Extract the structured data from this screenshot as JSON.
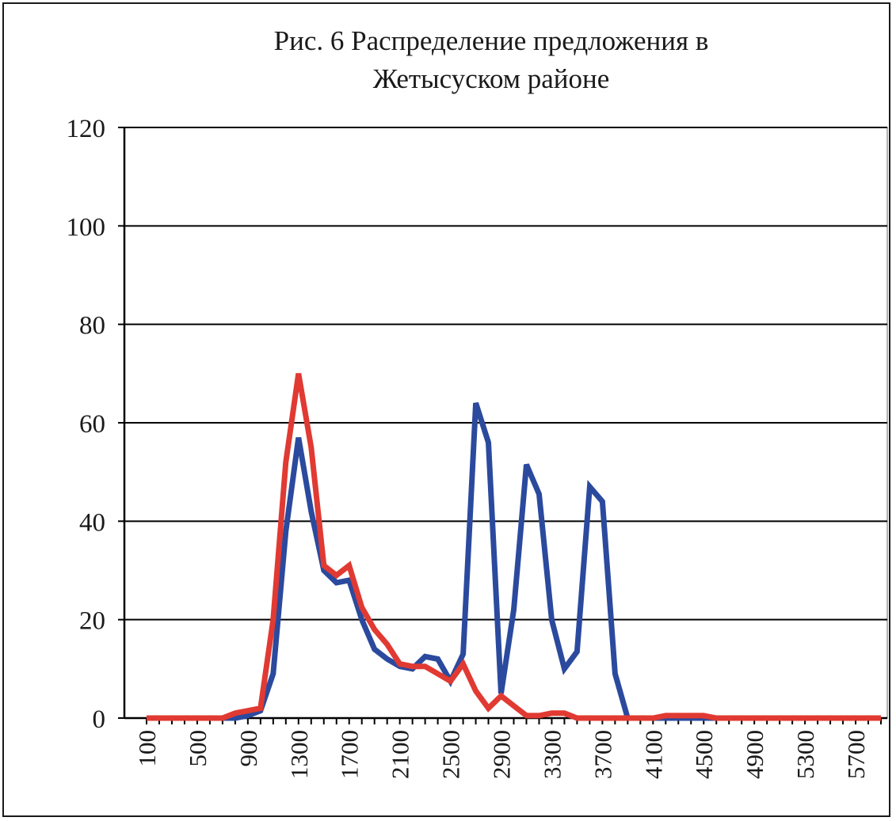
{
  "chart_data": {
    "type": "line",
    "title_line1": "Рис.  6 Распределение предложения в",
    "title_line2": "Жетысуском районе",
    "xlabel": "",
    "ylabel": "",
    "ylim": [
      0,
      120
    ],
    "yticks": [
      "0",
      "20",
      "40",
      "60",
      "80",
      "100",
      "120"
    ],
    "x": [
      100,
      200,
      300,
      400,
      500,
      600,
      700,
      800,
      900,
      1000,
      1100,
      1200,
      1300,
      1400,
      1500,
      1600,
      1700,
      1800,
      1900,
      2000,
      2100,
      2200,
      2300,
      2400,
      2500,
      2600,
      2700,
      2800,
      2900,
      3000,
      3100,
      3200,
      3300,
      3400,
      3500,
      3600,
      3700,
      3800,
      3900,
      4000,
      4100,
      4200,
      4300,
      4400,
      4500,
      4600,
      4700,
      4800,
      4900,
      5000,
      5100,
      5200,
      5300,
      5400,
      5500,
      5600,
      5700,
      5800,
      5900
    ],
    "xticks": [
      "100",
      "500",
      "900",
      "1300",
      "1700",
      "2100",
      "2500",
      "2900",
      "3300",
      "3700",
      "4100",
      "4500",
      "4900",
      "5300",
      "5700"
    ],
    "grid": true,
    "legend": "none",
    "series": [
      {
        "color": "#2b4a9e",
        "values": [
          0,
          0,
          0,
          0,
          0,
          0,
          0,
          0,
          0.5,
          1.5,
          9,
          38,
          57,
          42,
          30,
          27.5,
          28,
          20,
          14,
          12,
          10.5,
          10,
          12.5,
          12,
          7.5,
          13,
          64,
          56,
          5,
          22,
          51.5,
          45.5,
          20,
          10,
          13.5,
          47,
          44,
          9,
          0,
          0,
          0,
          0,
          0,
          0,
          0,
          0,
          0,
          0,
          0,
          0,
          0,
          0,
          0,
          0,
          0,
          0,
          0,
          0,
          0
        ]
      },
      {
        "color": "#e03a32",
        "values": [
          0,
          0,
          0,
          0,
          0,
          0,
          0,
          1,
          1.5,
          2,
          20,
          52,
          70,
          55,
          31,
          29,
          31,
          22.5,
          18,
          15,
          11,
          10.5,
          10.5,
          9,
          7.5,
          11,
          5.5,
          2,
          4.5,
          2.5,
          0.5,
          0.5,
          1,
          1,
          0,
          0,
          0,
          0,
          0,
          0,
          0,
          0.5,
          0.5,
          0.5,
          0.5,
          0,
          0,
          0,
          0,
          0,
          0,
          0,
          0,
          0,
          0,
          0,
          0,
          0,
          0
        ]
      }
    ]
  }
}
